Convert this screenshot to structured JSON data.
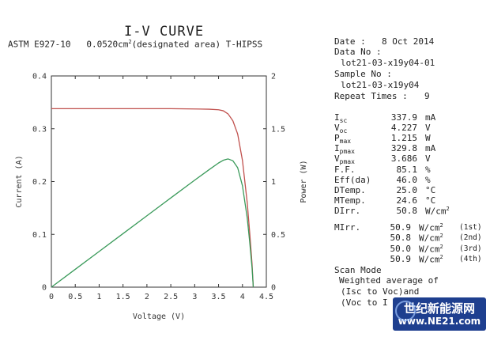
{
  "header": {
    "title": "I-V CURVE",
    "standard": "ASTM E927-10",
    "area_value": "0.0520cm",
    "area_sup": "2",
    "area_note": "(designated area)",
    "device": "T-HIPSS"
  },
  "info": {
    "date_label": "Date :",
    "date_value": "8 Oct 2014",
    "data_no_label": "Data No :",
    "data_no_value": "lot21-03-x19y04-01",
    "sample_no_label": "Sample No :",
    "sample_no_value": "lot21-03-x19y04",
    "repeat_label": "Repeat Times :",
    "repeat_value": "9"
  },
  "params": [
    {
      "main": "I",
      "sub": "sc",
      "value": "337.9",
      "unit": "mA",
      "sup": ""
    },
    {
      "main": "V",
      "sub": "oc",
      "value": "4.227",
      "unit": "V",
      "sup": ""
    },
    {
      "main": "P",
      "sub": "max",
      "value": "1.215",
      "unit": "W",
      "sup": ""
    },
    {
      "main": "I",
      "sub": "pmax",
      "value": "329.8",
      "unit": "mA",
      "sup": ""
    },
    {
      "main": "V",
      "sub": "pmax",
      "value": "3.686",
      "unit": "V",
      "sup": ""
    },
    {
      "main": "F.F.",
      "sub": "",
      "value": "85.1",
      "unit": "%",
      "sup": ""
    },
    {
      "main": "Eff(da)",
      "sub": "",
      "value": "46.0",
      "unit": "%",
      "sup": ""
    },
    {
      "main": "DTemp.",
      "sub": "",
      "value": "25.0",
      "unit": "°C",
      "sup": ""
    },
    {
      "main": "MTemp.",
      "sub": "",
      "value": "24.6",
      "unit": "°C",
      "sup": ""
    },
    {
      "main": "DIrr.",
      "sub": "",
      "value": "50.8",
      "unit": "W/cm",
      "sup": "2"
    }
  ],
  "mirr": {
    "label": "MIrr.",
    "rows": [
      {
        "value": "50.9",
        "unit": "W/cm",
        "sup": "2",
        "tag": "(1st)"
      },
      {
        "value": "50.8",
        "unit": "W/cm",
        "sup": "2",
        "tag": "(2nd)"
      },
      {
        "value": "50.0",
        "unit": "W/cm",
        "sup": "2",
        "tag": "(3rd)"
      },
      {
        "value": "50.9",
        "unit": "W/cm",
        "sup": "2",
        "tag": "(4th)"
      }
    ]
  },
  "scan": {
    "label": "Scan Mode",
    "line1": "Weighted average of",
    "line2": "(Isc to Voc)and",
    "line3": "(Voc to I"
  },
  "watermark": {
    "line1": "世纪新能源网",
    "line2": "www.NE21.com"
  },
  "colors": {
    "current": "#c0504d",
    "power": "#3a9a5a",
    "axis": "#333333"
  },
  "chart_data": {
    "type": "line",
    "xlabel": "Voltage (V)",
    "ylabel": "Current (A)",
    "y2label": "Power (W)",
    "xlim": [
      0,
      4.5
    ],
    "ylim": [
      0,
      0.4
    ],
    "y2lim": [
      0,
      2
    ],
    "xticks": [
      "0",
      "0.5",
      "1",
      "1.5",
      "2",
      "2.5",
      "3",
      "3.5",
      "4",
      "4.5"
    ],
    "yticks": [
      "0",
      "0.1",
      "0.2",
      "0.3",
      "0.4"
    ],
    "y2ticks": [
      "0",
      "0.5",
      "1",
      "1.5",
      "2"
    ],
    "grid": false,
    "series": [
      {
        "axis": "left",
        "x": [
          0,
          0.5,
          1,
          1.5,
          2,
          2.5,
          3,
          3.3,
          3.5,
          3.6,
          3.7,
          3.8,
          3.9,
          4.0,
          4.1,
          4.15,
          4.2,
          4.227
        ],
        "y": [
          0.338,
          0.338,
          0.338,
          0.338,
          0.338,
          0.338,
          0.3375,
          0.337,
          0.336,
          0.334,
          0.328,
          0.315,
          0.29,
          0.24,
          0.16,
          0.105,
          0.045,
          0.0
        ]
      },
      {
        "axis": "right",
        "x": [
          0,
          0.5,
          1,
          1.5,
          2,
          2.5,
          3,
          3.3,
          3.5,
          3.6,
          3.7,
          3.8,
          3.9,
          4.0,
          4.1,
          4.15,
          4.2,
          4.227
        ],
        "y": [
          0,
          0.169,
          0.338,
          0.507,
          0.676,
          0.845,
          1.013,
          1.112,
          1.176,
          1.202,
          1.214,
          1.197,
          1.131,
          0.96,
          0.656,
          0.436,
          0.189,
          0.0
        ]
      }
    ]
  }
}
